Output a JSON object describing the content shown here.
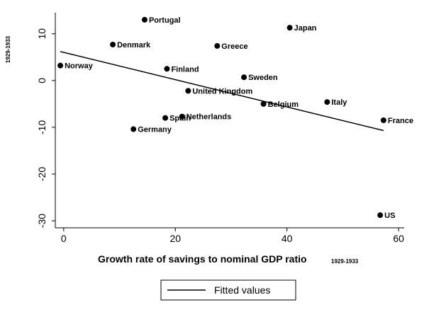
{
  "chart_data": {
    "type": "scatter",
    "xlabel": "Growth rate of savings to nominal GDP ratio",
    "xlabel_sub": "1929-1933",
    "ylabel": "1929-1933",
    "xlim": [
      -1.5,
      61
    ],
    "ylim": [
      -31.5,
      14.5
    ],
    "xticks": [
      0,
      20,
      40,
      60
    ],
    "yticks": [
      10,
      0,
      -10,
      -20,
      -30
    ],
    "points": [
      {
        "label": "Portugal",
        "x": 14.5,
        "y": 13.0
      },
      {
        "label": "Japan",
        "x": 40.5,
        "y": 11.3
      },
      {
        "label": "Denmark",
        "x": 8.8,
        "y": 7.7
      },
      {
        "label": "Greece",
        "x": 27.5,
        "y": 7.4
      },
      {
        "label": "Norway",
        "x": -0.6,
        "y": 3.2
      },
      {
        "label": "Finland",
        "x": 18.5,
        "y": 2.5
      },
      {
        "label": "Sweden",
        "x": 32.3,
        "y": 0.7
      },
      {
        "label": "United Kingdom",
        "x": 22.3,
        "y": -2.2
      },
      {
        "label": "Belgium",
        "x": 35.8,
        "y": -5.0
      },
      {
        "label": "Italy",
        "x": 47.2,
        "y": -4.6
      },
      {
        "label": "Spain",
        "x": 18.2,
        "y": -8.0
      },
      {
        "label": "Netherlands",
        "x": 21.2,
        "y": -7.7
      },
      {
        "label": "France",
        "x": 57.3,
        "y": -8.5
      },
      {
        "label": "Germany",
        "x": 12.5,
        "y": -10.4
      },
      {
        "label": "US",
        "x": 56.7,
        "y": -28.8
      }
    ],
    "fitted_line": {
      "name": "Fitted values",
      "x": [
        -0.6,
        57.3
      ],
      "y": [
        6.2,
        -10.7
      ]
    },
    "legend": [
      "Fitted values"
    ],
    "legend_position": "bottom",
    "grid": false
  }
}
